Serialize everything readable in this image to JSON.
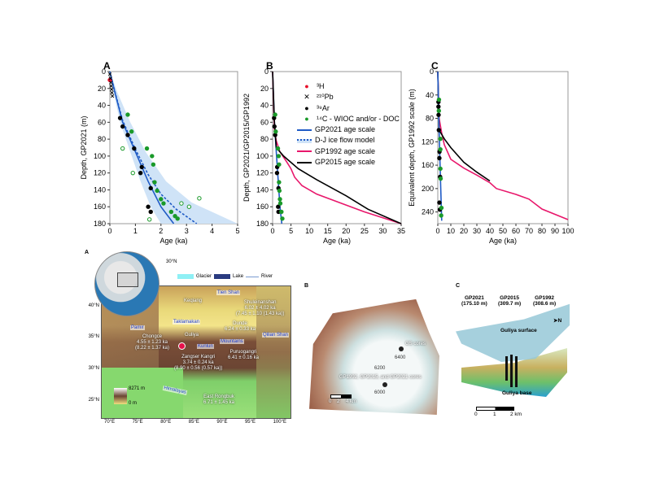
{
  "chart_data": [
    {
      "panel": "A",
      "type": "scatter",
      "xlabel": "Age (ka)",
      "ylabel": "Depth, GP2021 (m)",
      "xlim": [
        0,
        5
      ],
      "ylim": [
        180,
        0
      ],
      "xticks": [
        0,
        1,
        2,
        3,
        4,
        5
      ],
      "yticks": [
        0,
        20,
        40,
        60,
        80,
        100,
        120,
        140,
        160,
        180
      ],
      "series": [
        {
          "name": "3H",
          "marker": "dot",
          "color": "#e8102a",
          "points": [
            [
              0,
              10
            ]
          ]
        },
        {
          "name": "210Pb",
          "marker": "x",
          "color": "#000000",
          "points": [
            [
              0,
              3
            ],
            [
              0.02,
              8
            ],
            [
              0.04,
              13
            ],
            [
              0.05,
              17
            ],
            [
              0.07,
              21
            ],
            [
              0.08,
              25
            ],
            [
              0.1,
              29
            ]
          ]
        },
        {
          "name": "39Ar",
          "marker": "dot",
          "color": "#000000",
          "points": [
            [
              0.4,
              55
            ],
            [
              0.5,
              65
            ],
            [
              0.7,
              75
            ],
            [
              0.95,
              91
            ],
            [
              1.25,
              113
            ],
            [
              1.2,
              120
            ],
            [
              1.6,
              138
            ],
            [
              1.5,
              160
            ],
            [
              1.6,
              166
            ]
          ]
        },
        {
          "name": "14C - WIOC and/or - DOC",
          "marker": "dot",
          "color": "#1a9a2a",
          "points": [
            [
              0.7,
              51
            ],
            [
              0.85,
              71
            ],
            [
              1.45,
              91
            ],
            [
              1.65,
              100
            ],
            [
              1.7,
              110
            ],
            [
              1.75,
              131
            ],
            [
              1.85,
              141
            ],
            [
              2.0,
              151
            ],
            [
              2.1,
              156
            ],
            [
              2.4,
              166
            ],
            [
              2.55,
              171
            ],
            [
              2.65,
              174
            ]
          ]
        },
        {
          "name": "14C open",
          "marker": "open",
          "color": "#1a9a2a",
          "points": [
            [
              0.5,
              91
            ],
            [
              0.9,
              120
            ],
            [
              3.5,
              150
            ],
            [
              2.8,
              156
            ],
            [
              3.1,
              160
            ],
            [
              1.55,
              175
            ]
          ]
        },
        {
          "name": "GP2021 age scale",
          "line": "solid",
          "color": "#1f5bc6",
          "points": [
            [
              0,
              0
            ],
            [
              0.2,
              25
            ],
            [
              0.5,
              60
            ],
            [
              1,
              95
            ],
            [
              1.5,
              130
            ],
            [
              2,
              160
            ],
            [
              2.5,
              180
            ]
          ]
        },
        {
          "name": "D-J ice flow model",
          "line": "dashed",
          "color": "#1f5bc6",
          "points": [
            [
              0,
              0
            ],
            [
              0.2,
              24
            ],
            [
              0.5,
              58
            ],
            [
              1,
              92
            ],
            [
              1.5,
              122
            ],
            [
              2,
              145
            ],
            [
              2.6,
              163
            ],
            [
              3.4,
              180
            ]
          ]
        }
      ]
    },
    {
      "panel": "B",
      "type": "line",
      "xlabel": "Age (ka)",
      "ylabel": "Depth, GP2021/GP2015/GP1992",
      "xlim": [
        0,
        35
      ],
      "ylim": [
        180,
        0
      ],
      "xticks": [
        0,
        5,
        10,
        15,
        20,
        25,
        30,
        35
      ],
      "yticks": [
        0,
        20,
        40,
        60,
        80,
        100,
        120,
        140,
        160,
        180
      ],
      "series": [
        {
          "name": "GP2021 age scale",
          "line": "solid",
          "color": "#1f5bc6",
          "points": [
            [
              0,
              0
            ],
            [
              0.5,
              60
            ],
            [
              1,
              95
            ],
            [
              2,
              160
            ],
            [
              2.5,
              180
            ]
          ]
        },
        {
          "name": "GP1992 age scale",
          "line": "solid",
          "color": "#e8176b",
          "points": [
            [
              0,
              0
            ],
            [
              0.5,
              70
            ],
            [
              1,
              82
            ],
            [
              2,
              95
            ],
            [
              4,
              108
            ],
            [
              5,
              115
            ],
            [
              6,
              125
            ],
            [
              8,
              135
            ],
            [
              12,
              145
            ],
            [
              20,
              158
            ],
            [
              25,
              166
            ],
            [
              30,
              173
            ],
            [
              35,
              180
            ]
          ]
        },
        {
          "name": "GP2015 age scale",
          "line": "solid",
          "color": "#000000",
          "points": [
            [
              0,
              0
            ],
            [
              0.5,
              60
            ],
            [
              1,
              90
            ],
            [
              3,
              100
            ],
            [
              7,
              115
            ],
            [
              12,
              128
            ],
            [
              20,
              147
            ],
            [
              26,
              163
            ],
            [
              35,
              180
            ]
          ]
        },
        {
          "name": "39Ar",
          "marker": "dot",
          "color": "#000000",
          "points": [
            [
              0.4,
              55
            ],
            [
              0.5,
              65
            ],
            [
              0.7,
              75
            ],
            [
              1.25,
              113
            ],
            [
              1.2,
              120
            ],
            [
              1.6,
              138
            ],
            [
              1.5,
              160
            ],
            [
              1.6,
              166
            ]
          ]
        },
        {
          "name": "14C",
          "marker": "dot",
          "color": "#1a9a2a",
          "points": [
            [
              0.7,
              51
            ],
            [
              0.85,
              71
            ],
            [
              1.45,
              91
            ],
            [
              1.65,
              100
            ],
            [
              1.75,
              110
            ],
            [
              1.75,
              131
            ],
            [
              1.85,
              141
            ],
            [
              2.0,
              151
            ],
            [
              2.1,
              156
            ],
            [
              2.4,
              166
            ],
            [
              2.65,
              174
            ]
          ]
        }
      ]
    },
    {
      "panel": "C",
      "type": "line",
      "xlabel": "Age (ka)",
      "ylabel": "Equivalent depth, GP1992 scale (m)",
      "xlim": [
        0,
        100
      ],
      "ylim": [
        260,
        0
      ],
      "xticks": [
        0,
        10,
        20,
        30,
        40,
        50,
        60,
        70,
        80,
        90,
        100
      ],
      "yticks": [
        0,
        40,
        80,
        120,
        160,
        200,
        240
      ],
      "series": [
        {
          "name": "GP1992 age scale",
          "line": "solid",
          "color": "#e8176b",
          "points": [
            [
              0,
              0
            ],
            [
              1,
              80
            ],
            [
              3,
              105
            ],
            [
              5,
              125
            ],
            [
              10,
              150
            ],
            [
              20,
              165
            ],
            [
              30,
              177
            ],
            [
              40,
              190
            ],
            [
              45,
              200
            ],
            [
              60,
              210
            ],
            [
              70,
              218
            ],
            [
              80,
              235
            ],
            [
              100,
              253
            ]
          ]
        },
        {
          "name": "GP2015 age scale",
          "line": "solid",
          "color": "#000000",
          "points": [
            [
              0,
              0
            ],
            [
              1,
              100
            ],
            [
              5,
              115
            ],
            [
              10,
              130
            ],
            [
              20,
              155
            ],
            [
              30,
              172
            ],
            [
              40,
              187
            ]
          ]
        },
        {
          "name": "GP2021 age scale",
          "line": "solid",
          "color": "#1f5bc6",
          "points": [
            [
              0,
              0
            ],
            [
              1,
              100
            ],
            [
              2,
              180
            ],
            [
              3,
              255
            ]
          ]
        },
        {
          "name": "39Ar",
          "marker": "dot",
          "color": "#000000",
          "points": [
            [
              0.5,
              52
            ],
            [
              0.5,
              60
            ],
            [
              0.6,
              74
            ],
            [
              0.8,
              100
            ],
            [
              1.3,
              137
            ],
            [
              1.2,
              148
            ],
            [
              1.8,
              180
            ],
            [
              1.2,
              224
            ],
            [
              1.6,
              236
            ]
          ]
        },
        {
          "name": "14C",
          "marker": "dot",
          "color": "#1a9a2a",
          "points": [
            [
              0.9,
              48
            ],
            [
              0.8,
              67
            ],
            [
              2,
              115
            ],
            [
              2,
              133
            ],
            [
              2,
              166
            ],
            [
              2.2,
              183
            ],
            [
              2.8,
              233
            ],
            [
              2.6,
              246
            ]
          ]
        }
      ]
    }
  ],
  "legend": {
    "items": [
      "³H",
      "²¹⁰Pb",
      "³⁹Ar",
      "¹⁴C - WIOC and/or - DOC",
      "GP2021 age scale",
      "D-J ice flow model",
      "GP1992 age scale",
      "GP2015 age scale"
    ]
  },
  "map": {
    "panel": "A",
    "globe_lat": "30°N",
    "legend": {
      "glacier": "Glacier",
      "lake": "Lake",
      "river": "River"
    },
    "lat_ticks": [
      "40°N",
      "35°N",
      "30°N",
      "25°N"
    ],
    "lon_ticks": [
      "70°E",
      "75°E",
      "80°E",
      "85°E",
      "90°E",
      "95°E",
      "100°E"
    ],
    "elev_max": "8271 m",
    "elev_min": "0 m",
    "regions": [
      "Tien Shan",
      "Pamir",
      "Taklamakan",
      "Kunlun",
      "Mountains",
      "Qilian Shan",
      "Himalayas"
    ],
    "sites": [
      {
        "name": "Guliya",
        "value": ""
      },
      {
        "name": "Chongce",
        "value": "4.55 ± 1.23 ka",
        "value2": "(8.22 ± 1.37 ka)"
      },
      {
        "name": "Zangser Kangri",
        "value": "3.74 ± 0.24 ka",
        "value2": "(8.90 ± 0.56 (0.57 ka))"
      },
      {
        "name": "Puruogangri",
        "value": "6.41 ± 0.16 ka"
      },
      {
        "name": "Dunde",
        "value": "6.24 ± 0.33 ka"
      },
      {
        "name": "Shuleinanshan",
        "value": "6.02 ± 4.02 ka",
        "value2": "(7.45 ± 1.10 (1.43 ka))"
      },
      {
        "name": "East Rongbuk",
        "value": "6.71 ± 1.45 ka"
      },
      {
        "name": "Keqiang",
        "value": ""
      }
    ]
  },
  "photo": {
    "panel": "B",
    "gs": "GS cores",
    "cores": "GP1992, GP2015, and GP2021 cores",
    "contours": [
      "6400",
      "6200",
      "6000"
    ],
    "scale": [
      "0",
      "2",
      "4 km"
    ]
  },
  "model": {
    "panel": "C",
    "cores": [
      {
        "name": "GP2021",
        "len": "(175.10 m)"
      },
      {
        "name": "GP2015",
        "len": "(309.7 m)"
      },
      {
        "name": "GP1992",
        "len": "(308.6 m)"
      }
    ],
    "surface": "Guliya surface",
    "base": "Guliya base",
    "north": "N",
    "scale": [
      "0",
      "1",
      "2 km"
    ]
  }
}
